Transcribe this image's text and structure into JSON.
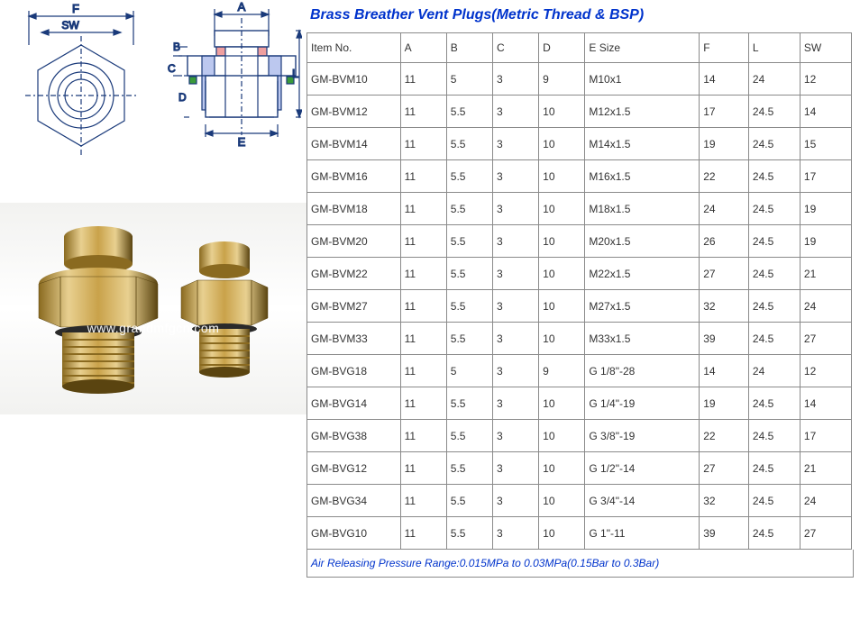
{
  "title": "Brass Breather Vent Plugs(Metric Thread & BSP)",
  "watermark": "www.grandmfgcn.com",
  "diagram": {
    "labels": [
      "F",
      "SW",
      "A",
      "B",
      "C",
      "D",
      "E",
      "L"
    ],
    "line_color": "#1a3a7a",
    "hatch_colors": {
      "red": "#e04040",
      "green": "#3a9a3a",
      "blue": "#4060d0"
    }
  },
  "photo": {
    "brass_light": "#e8d090",
    "brass_mid": "#c9a24a",
    "brass_dark": "#8a6a20",
    "brass_shadow": "#5a4410"
  },
  "table": {
    "columns": [
      "Item No.",
      "A",
      "B",
      "C",
      "D",
      "E Size",
      "F",
      "L",
      "SW"
    ],
    "rows": [
      [
        "GM-BVM10",
        "11",
        "5",
        "3",
        "9",
        "M10x1",
        "14",
        "24",
        "12"
      ],
      [
        "GM-BVM12",
        "11",
        "5.5",
        "3",
        "10",
        "M12x1.5",
        "17",
        "24.5",
        "14"
      ],
      [
        "GM-BVM14",
        "11",
        "5.5",
        "3",
        "10",
        "M14x1.5",
        "19",
        "24.5",
        "15"
      ],
      [
        "GM-BVM16",
        "11",
        "5.5",
        "3",
        "10",
        "M16x1.5",
        "22",
        "24.5",
        "17"
      ],
      [
        "GM-BVM18",
        "11",
        "5.5",
        "3",
        "10",
        "M18x1.5",
        "24",
        "24.5",
        "19"
      ],
      [
        "GM-BVM20",
        "11",
        "5.5",
        "3",
        "10",
        "M20x1.5",
        "26",
        "24.5",
        "19"
      ],
      [
        "GM-BVM22",
        "11",
        "5.5",
        "3",
        "10",
        "M22x1.5",
        "27",
        "24.5",
        "21"
      ],
      [
        "GM-BVM27",
        "11",
        "5.5",
        "3",
        "10",
        "M27x1.5",
        "32",
        "24.5",
        "24"
      ],
      [
        "GM-BVM33",
        "11",
        "5.5",
        "3",
        "10",
        "M33x1.5",
        "39",
        "24.5",
        "27"
      ],
      [
        "GM-BVG18",
        "11",
        "5",
        "3",
        "9",
        "G 1/8\"-28",
        "14",
        "24",
        "12"
      ],
      [
        "GM-BVG14",
        "11",
        "5.5",
        "3",
        "10",
        "G 1/4\"-19",
        "19",
        "24.5",
        "14"
      ],
      [
        "GM-BVG38",
        "11",
        "5.5",
        "3",
        "10",
        "G 3/8\"-19",
        "22",
        "24.5",
        "17"
      ],
      [
        "GM-BVG12",
        "11",
        "5.5",
        "3",
        "10",
        "G 1/2\"-14",
        "27",
        "24.5",
        "21"
      ],
      [
        "GM-BVG34",
        "11",
        "5.5",
        "3",
        "10",
        "G 3/4\"-14",
        "32",
        "24.5",
        "24"
      ],
      [
        "GM-BVG10",
        "11",
        "5.5",
        "3",
        "10",
        "G   1\"-11",
        "39",
        "24.5",
        "27"
      ]
    ]
  },
  "footer": "Air Releasing Pressure Range:0.015MPa to 0.03MPa(0.15Bar to 0.3Bar)",
  "colors": {
    "title": "#0033cc",
    "border": "#8a8a8a",
    "text": "#333333"
  }
}
